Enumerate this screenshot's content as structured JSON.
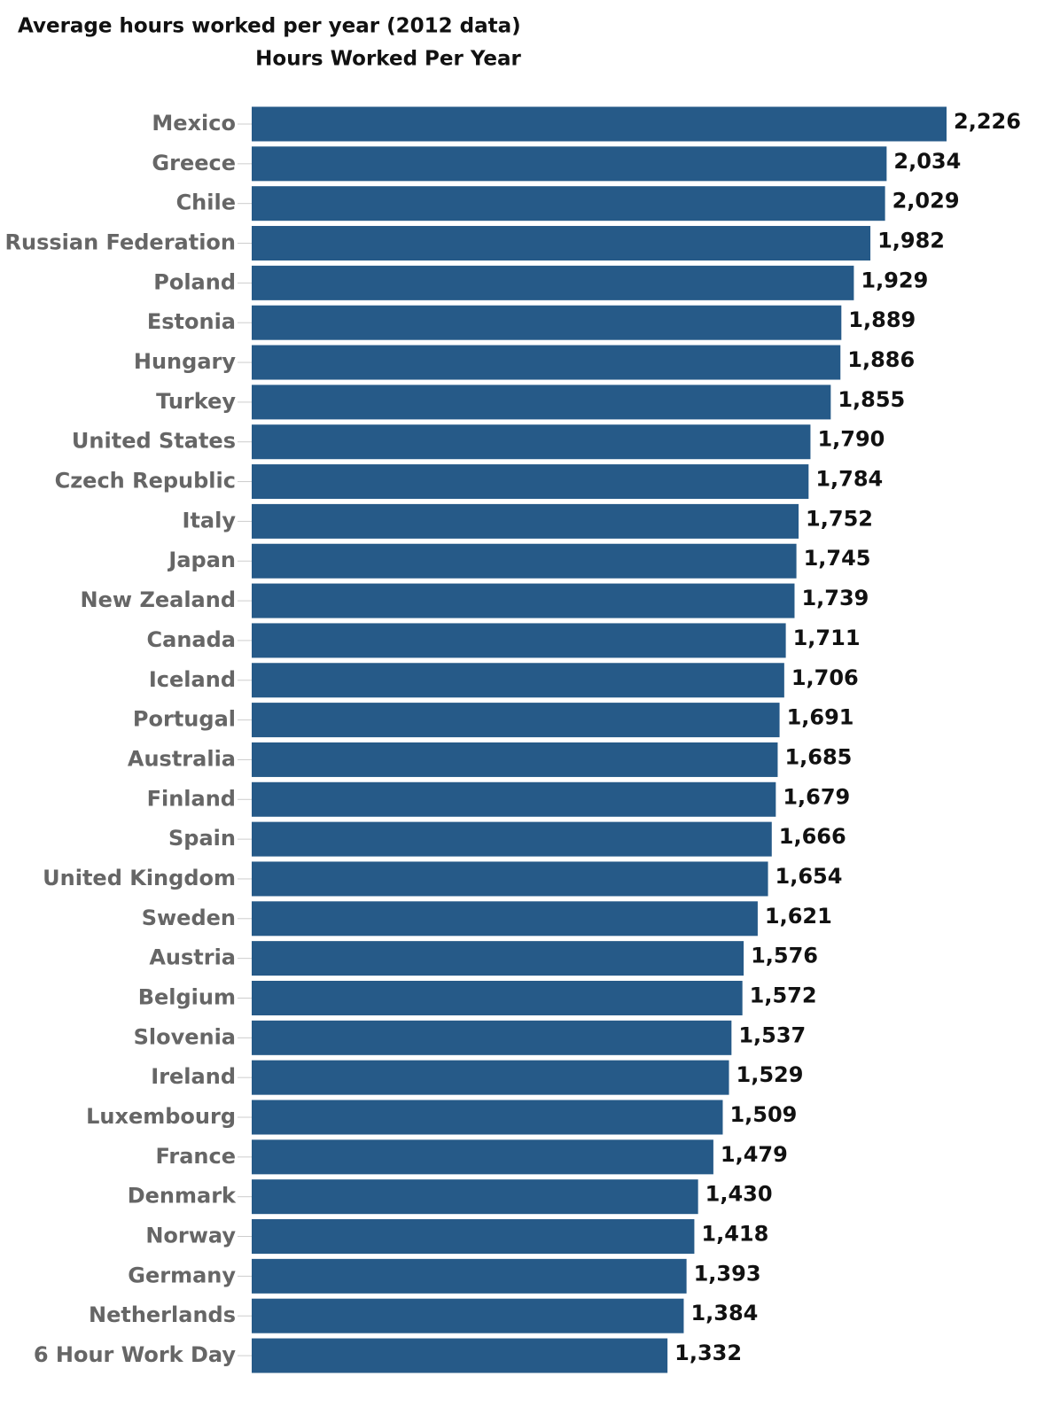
{
  "chart_data": {
    "type": "hbar",
    "title": "Average hours worked per year (2012 data)",
    "subtitle": "Hours Worked Per Year",
    "color": "#265a88",
    "categories": [
      "Mexico",
      "Greece",
      "Chile",
      "Russian Federation",
      "Poland",
      "Estonia",
      "Hungary",
      "Turkey",
      "United States",
      "Czech Republic",
      "Italy",
      "Japan",
      "New Zealand",
      "Canada",
      "Iceland",
      "Portugal",
      "Australia",
      "Finland",
      "Spain",
      "United Kingdom",
      "Sweden",
      "Austria",
      "Belgium",
      "Slovenia",
      "Ireland",
      "Luxembourg",
      "France",
      "Denmark",
      "Norway",
      "Germany",
      "Netherlands",
      "6 Hour Work Day"
    ],
    "values": [
      2226,
      2034,
      2029,
      1982,
      1929,
      1889,
      1886,
      1855,
      1790,
      1784,
      1752,
      1745,
      1739,
      1711,
      1706,
      1691,
      1685,
      1679,
      1666,
      1654,
      1621,
      1576,
      1572,
      1537,
      1529,
      1509,
      1479,
      1430,
      1418,
      1393,
      1384,
      1332
    ],
    "value_labels": [
      "2,226",
      "2,034",
      "2,029",
      "1,982",
      "1,929",
      "1,889",
      "1,886",
      "1,855",
      "1,790",
      "1,784",
      "1,752",
      "1,745",
      "1,739",
      "1,711",
      "1,706",
      "1,691",
      "1,685",
      "1,679",
      "1,666",
      "1,654",
      "1,621",
      "1,576",
      "1,572",
      "1,537",
      "1,529",
      "1,509",
      "1,479",
      "1,430",
      "1,418",
      "1,393",
      "1,384",
      "1,332"
    ]
  }
}
